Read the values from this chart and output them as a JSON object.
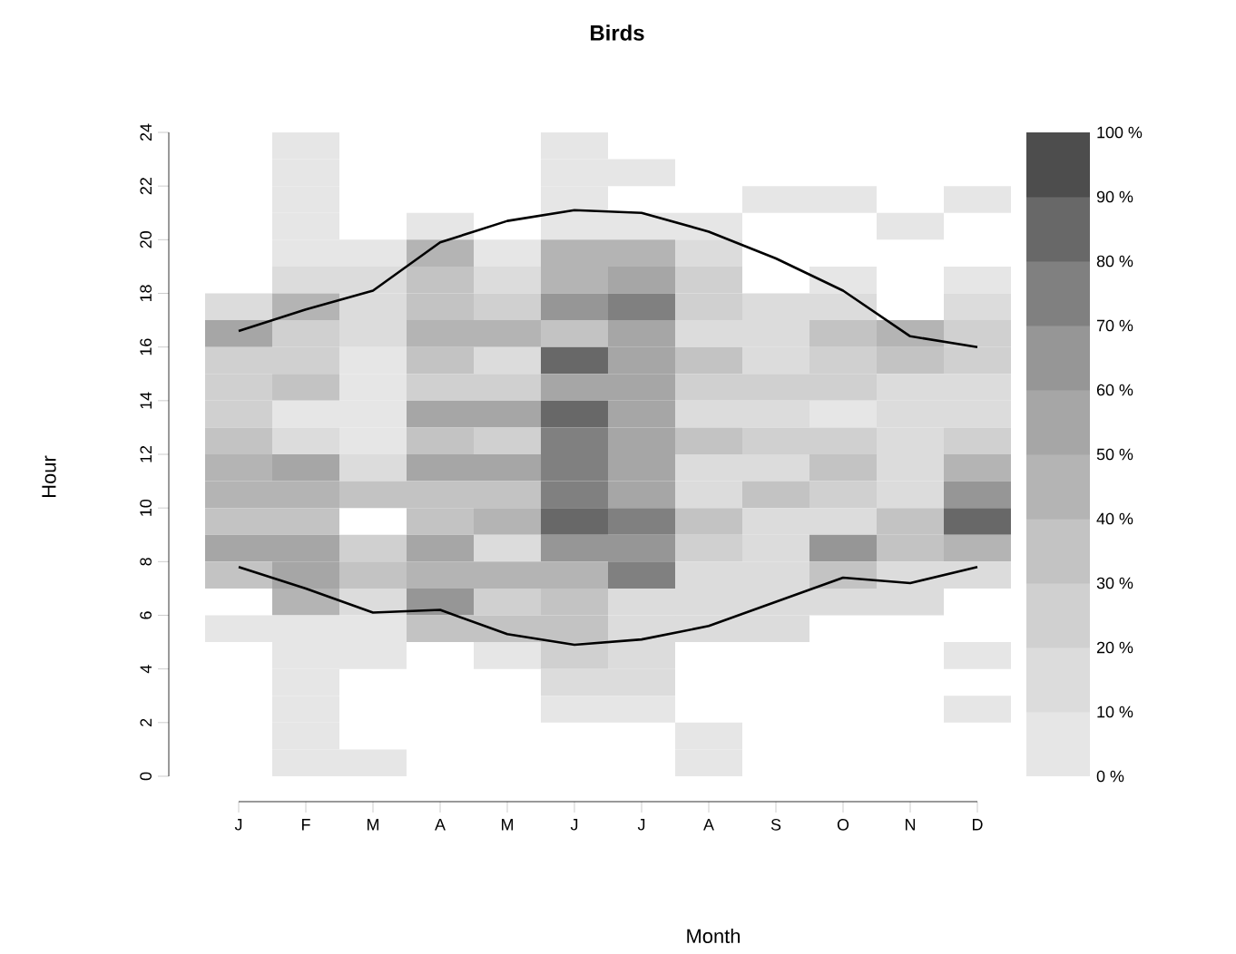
{
  "chart_data": {
    "type": "heatmap",
    "title": "Birds",
    "xlabel": "Month",
    "ylabel": "Hour",
    "categories": [
      "J",
      "F",
      "M",
      "A",
      "M",
      "J",
      "J",
      "A",
      "S",
      "O",
      "N",
      "D"
    ],
    "ylim": [
      0,
      24
    ],
    "yticks": [
      0,
      2,
      4,
      6,
      8,
      10,
      12,
      14,
      16,
      18,
      20,
      22,
      24
    ],
    "clim": [
      0,
      100
    ],
    "cticks": [
      {
        "value": 0,
        "label": "0 %"
      },
      {
        "value": 10,
        "label": "10 %"
      },
      {
        "value": 20,
        "label": "20 %"
      },
      {
        "value": 30,
        "label": "30 %"
      },
      {
        "value": 40,
        "label": "40 %"
      },
      {
        "value": 50,
        "label": "50 %"
      },
      {
        "value": 60,
        "label": "60 %"
      },
      {
        "value": 70,
        "label": "70 %"
      },
      {
        "value": 80,
        "label": "80 %"
      },
      {
        "value": 90,
        "label": "90 %"
      },
      {
        "value": 100,
        "label": "100 %"
      }
    ],
    "cells": [
      [
        null,
        5,
        null,
        null,
        null,
        5,
        null,
        null,
        null,
        null,
        null,
        null
      ],
      [
        null,
        5,
        null,
        null,
        null,
        5,
        5,
        null,
        null,
        null,
        null,
        null
      ],
      [
        null,
        5,
        null,
        null,
        null,
        5,
        null,
        null,
        5,
        5,
        null,
        5
      ],
      [
        null,
        5,
        null,
        5,
        null,
        5,
        5,
        5,
        null,
        null,
        5,
        null
      ],
      [
        null,
        5,
        5,
        45,
        5,
        45,
        45,
        15,
        null,
        null,
        null,
        null
      ],
      [
        null,
        15,
        15,
        35,
        15,
        45,
        55,
        25,
        null,
        5,
        null,
        5
      ],
      [
        15,
        45,
        15,
        35,
        25,
        65,
        75,
        25,
        15,
        15,
        null,
        15
      ],
      [
        55,
        25,
        15,
        45,
        45,
        35,
        55,
        15,
        15,
        35,
        45,
        25
      ],
      [
        25,
        25,
        5,
        35,
        15,
        85,
        55,
        35,
        15,
        25,
        35,
        25
      ],
      [
        25,
        35,
        5,
        25,
        25,
        55,
        55,
        25,
        25,
        25,
        15,
        15
      ],
      [
        25,
        5,
        5,
        55,
        55,
        85,
        55,
        15,
        15,
        5,
        15,
        15
      ],
      [
        35,
        15,
        5,
        35,
        25,
        75,
        55,
        35,
        25,
        25,
        15,
        25
      ],
      [
        45,
        55,
        15,
        55,
        55,
        75,
        55,
        15,
        15,
        35,
        15,
        45
      ],
      [
        45,
        45,
        35,
        35,
        35,
        75,
        55,
        15,
        35,
        25,
        15,
        65
      ],
      [
        35,
        35,
        null,
        35,
        45,
        85,
        75,
        35,
        15,
        15,
        35,
        85
      ],
      [
        55,
        55,
        25,
        55,
        15,
        65,
        65,
        25,
        15,
        65,
        35,
        45
      ],
      [
        35,
        55,
        35,
        45,
        45,
        45,
        75,
        15,
        15,
        35,
        15,
        15
      ],
      [
        null,
        45,
        15,
        65,
        25,
        35,
        15,
        15,
        15,
        15,
        15,
        null
      ],
      [
        5,
        5,
        5,
        35,
        35,
        35,
        15,
        15,
        15,
        null,
        null,
        null
      ],
      [
        null,
        5,
        5,
        null,
        5,
        25,
        15,
        null,
        null,
        null,
        null,
        5
      ],
      [
        null,
        5,
        null,
        null,
        null,
        15,
        15,
        null,
        null,
        null,
        null,
        null
      ],
      [
        null,
        5,
        null,
        null,
        null,
        5,
        5,
        null,
        null,
        null,
        null,
        5
      ],
      [
        null,
        5,
        null,
        null,
        null,
        null,
        null,
        5,
        null,
        null,
        null,
        null
      ],
      [
        null,
        5,
        5,
        null,
        null,
        null,
        null,
        5,
        null,
        null,
        null,
        null
      ]
    ],
    "series": [
      {
        "type": "line",
        "color": "#000000",
        "values": [
          16.6,
          17.4,
          18.1,
          19.9,
          20.7,
          21.1,
          21.0,
          20.3,
          19.3,
          18.1,
          16.4,
          16.0
        ]
      },
      {
        "type": "line",
        "color": "#000000",
        "values": [
          7.8,
          7.0,
          6.1,
          6.2,
          5.3,
          4.9,
          5.1,
          5.6,
          6.5,
          7.4,
          7.2,
          7.8
        ]
      }
    ]
  }
}
